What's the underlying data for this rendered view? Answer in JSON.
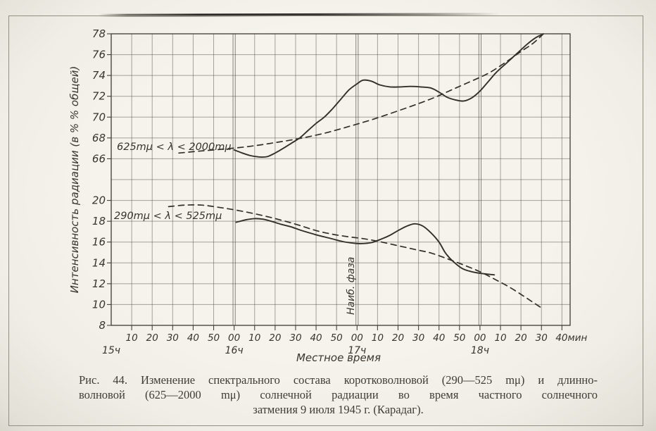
{
  "page": {
    "caption": {
      "lines": [
        "Рис. 44. Изменение спектрального состава коротковолновой (290—525 mμ) и длинно-",
        "волновой (625—2000 mμ) солнечной радиации во время частного солнечного",
        "затмения 9 июля 1945 г. (Карадаг)."
      ]
    }
  },
  "chart": {
    "y_axis_title": "Интенсивность радиации (в % % общей)",
    "x_axis_title": "Местное время",
    "max_phase_label": "Наиб. фаза",
    "upper_band_label": "625mμ < λ < 2000mμ",
    "lower_band_label": "290mμ < λ < 525mμ",
    "y_tick_labels": [
      "78",
      "76",
      "74",
      "72",
      "70",
      "68",
      "66",
      "",
      "20",
      "18",
      "16",
      "14",
      "12",
      "10",
      "8"
    ],
    "x_tick_labels": [
      {
        "t": 10,
        "label": "10"
      },
      {
        "t": 20,
        "label": "20"
      },
      {
        "t": 30,
        "label": "30"
      },
      {
        "t": 40,
        "label": "40"
      },
      {
        "t": 50,
        "label": "50"
      },
      {
        "t": 60,
        "label": "00"
      },
      {
        "t": 70,
        "label": "10"
      },
      {
        "t": 80,
        "label": "20"
      },
      {
        "t": 90,
        "label": "30"
      },
      {
        "t": 100,
        "label": "40"
      },
      {
        "t": 110,
        "label": "50"
      },
      {
        "t": 120,
        "label": "00"
      },
      {
        "t": 130,
        "label": "10"
      },
      {
        "t": 140,
        "label": "20"
      },
      {
        "t": 150,
        "label": "30"
      },
      {
        "t": 160,
        "label": "40"
      },
      {
        "t": 170,
        "label": "50"
      },
      {
        "t": 180,
        "label": "00"
      },
      {
        "t": 190,
        "label": "10"
      },
      {
        "t": 200,
        "label": "20"
      },
      {
        "t": 210,
        "label": "30"
      },
      {
        "t": 220,
        "label": "40мин"
      }
    ],
    "hour_labels": [
      {
        "t": 0,
        "label": "15ч"
      },
      {
        "t": 60,
        "label": "16ч"
      },
      {
        "t": 120,
        "label": "17ч"
      },
      {
        "t": 180,
        "label": "18ч"
      }
    ]
  },
  "chart_data": {
    "type": "line",
    "title": "",
    "xlabel": "Местное время",
    "ylabel": "Интенсивность радиации (в % % общей)",
    "x_unit": "minutes after 15:00",
    "x_axis": {
      "range_minutes": [
        0,
        224
      ],
      "tick_step_minutes": 10,
      "hour_lines_minutes": [
        60,
        120,
        180
      ],
      "hours": [
        "15ч",
        "16ч",
        "17ч",
        "18ч"
      ],
      "unit_suffix": "мин"
    },
    "y_axis": {
      "broken": true,
      "upper_segment_range": [
        66,
        78
      ],
      "lower_segment_range": [
        8,
        20
      ],
      "tick_step": 2
    },
    "grid": true,
    "ink_color": "#33302a",
    "annotations": [
      {
        "text": "625mμ < λ < 2000mμ",
        "segment": "upper",
        "near_value": 67.2
      },
      {
        "text": "290mμ < λ < 525mμ",
        "segment": "lower",
        "near_value": 18.8
      },
      {
        "text": "Наиб. фаза",
        "type": "vertical-line-label",
        "x_minutes": 120
      }
    ],
    "series": [
      {
        "id": "longwave-observed",
        "name": "625mμ < λ < 2000mμ",
        "style": "solid",
        "segment": "upper",
        "points": [
          [
            60,
            66.85
          ],
          [
            64,
            66.55
          ],
          [
            68,
            66.3
          ],
          [
            72,
            66.18
          ],
          [
            76,
            66.2
          ],
          [
            80,
            66.55
          ],
          [
            84,
            67.0
          ],
          [
            88,
            67.5
          ],
          [
            92,
            68.0
          ],
          [
            96,
            68.7
          ],
          [
            100,
            69.4
          ],
          [
            104,
            70.0
          ],
          [
            108,
            70.8
          ],
          [
            112,
            71.7
          ],
          [
            116,
            72.6
          ],
          [
            120,
            73.2
          ],
          [
            123,
            73.55
          ],
          [
            127,
            73.45
          ],
          [
            131,
            73.1
          ],
          [
            136,
            72.9
          ],
          [
            141,
            72.9
          ],
          [
            146,
            72.95
          ],
          [
            151,
            72.9
          ],
          [
            156,
            72.8
          ],
          [
            160,
            72.4
          ],
          [
            164,
            71.9
          ],
          [
            168,
            71.65
          ],
          [
            172,
            71.55
          ],
          [
            176,
            71.85
          ],
          [
            180,
            72.5
          ],
          [
            184,
            73.4
          ],
          [
            188,
            74.3
          ],
          [
            193,
            75.2
          ],
          [
            198,
            76.1
          ],
          [
            203,
            77.0
          ],
          [
            207,
            77.6
          ],
          [
            210,
            77.9
          ]
        ]
      },
      {
        "id": "longwave-expected",
        "name": "625mμ < λ < 2000mμ",
        "style": "dashed",
        "segment": "upper",
        "points": [
          [
            33,
            66.55
          ],
          [
            44,
            66.75
          ],
          [
            56,
            66.95
          ],
          [
            68,
            67.2
          ],
          [
            80,
            67.55
          ],
          [
            92,
            67.95
          ],
          [
            104,
            68.45
          ],
          [
            116,
            69.1
          ],
          [
            128,
            69.8
          ],
          [
            140,
            70.6
          ],
          [
            150,
            71.3
          ],
          [
            158,
            71.9
          ],
          [
            166,
            72.6
          ],
          [
            174,
            73.3
          ],
          [
            184,
            74.2
          ],
          [
            192,
            75.2
          ],
          [
            200,
            76.3
          ],
          [
            206,
            77.1
          ],
          [
            211,
            78.0
          ]
        ]
      },
      {
        "id": "shortwave-observed",
        "name": "290mμ < λ < 525mμ",
        "style": "solid",
        "segment": "lower",
        "points": [
          [
            61,
            17.9
          ],
          [
            66,
            18.15
          ],
          [
            70,
            18.25
          ],
          [
            74,
            18.2
          ],
          [
            78,
            18.0
          ],
          [
            83,
            17.7
          ],
          [
            88,
            17.45
          ],
          [
            93,
            17.1
          ],
          [
            100,
            16.7
          ],
          [
            107,
            16.35
          ],
          [
            113,
            16.05
          ],
          [
            118,
            15.9
          ],
          [
            122,
            15.85
          ],
          [
            127,
            15.95
          ],
          [
            132,
            16.3
          ],
          [
            136,
            16.65
          ],
          [
            140,
            17.1
          ],
          [
            144,
            17.5
          ],
          [
            148,
            17.75
          ],
          [
            152,
            17.55
          ],
          [
            156,
            16.9
          ],
          [
            160,
            16.0
          ],
          [
            163,
            15.0
          ],
          [
            166,
            14.3
          ],
          [
            171,
            13.5
          ],
          [
            175,
            13.2
          ],
          [
            180,
            13.0
          ],
          [
            187,
            12.85
          ]
        ]
      },
      {
        "id": "shortwave-expected",
        "name": "290mμ < λ < 525mμ",
        "style": "dashed",
        "segment": "lower",
        "points": [
          [
            28,
            19.4
          ],
          [
            36,
            19.55
          ],
          [
            44,
            19.55
          ],
          [
            52,
            19.35
          ],
          [
            60,
            19.1
          ],
          [
            68,
            18.8
          ],
          [
            76,
            18.45
          ],
          [
            84,
            18.05
          ],
          [
            92,
            17.6
          ],
          [
            100,
            17.1
          ],
          [
            108,
            16.75
          ],
          [
            116,
            16.5
          ],
          [
            124,
            16.3
          ],
          [
            132,
            16.0
          ],
          [
            140,
            15.65
          ],
          [
            148,
            15.3
          ],
          [
            156,
            14.95
          ],
          [
            164,
            14.4
          ],
          [
            172,
            13.8
          ],
          [
            180,
            13.15
          ],
          [
            188,
            12.35
          ],
          [
            195,
            11.6
          ],
          [
            201,
            10.85
          ],
          [
            206,
            10.2
          ],
          [
            211,
            9.55
          ]
        ]
      }
    ]
  }
}
